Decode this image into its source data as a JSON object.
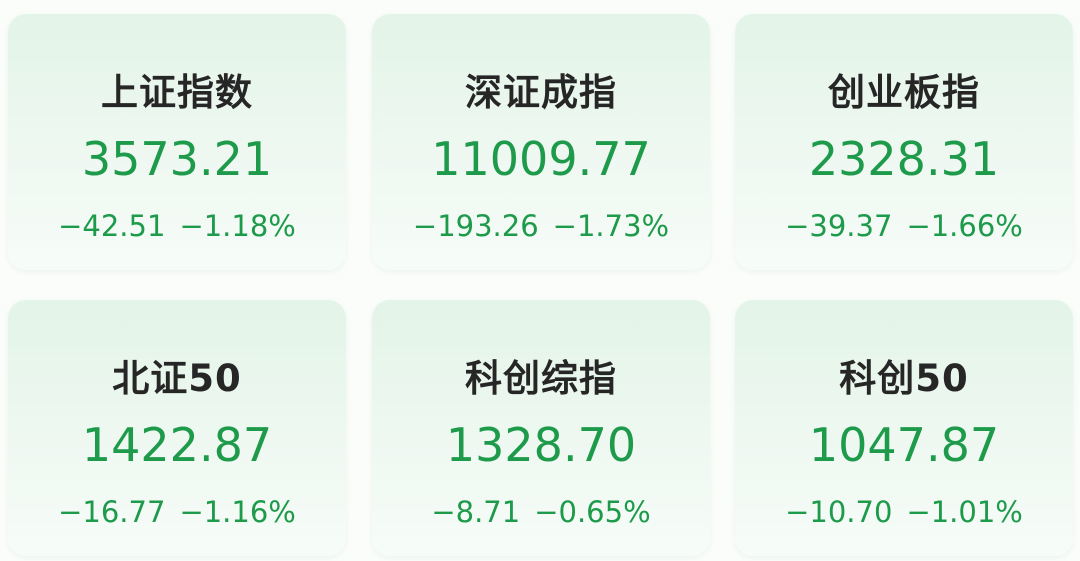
{
  "colors": {
    "down": "#1e9a4b",
    "title": "#262626"
  },
  "indices": [
    {
      "name": "上证指数",
      "value": "3573.21",
      "change": "−42.51",
      "pct": "−1.18%"
    },
    {
      "name": "深证成指",
      "value": "11009.77",
      "change": "−193.26",
      "pct": "−1.73%"
    },
    {
      "name": "创业板指",
      "value": "2328.31",
      "change": "−39.37",
      "pct": "−1.66%"
    },
    {
      "name": "北证50",
      "value": "1422.87",
      "change": "−16.77",
      "pct": "−1.16%"
    },
    {
      "name": "科创综指",
      "value": "1328.70",
      "change": "−8.71",
      "pct": "−0.65%"
    },
    {
      "name": "科创50",
      "value": "1047.87",
      "change": "−10.70",
      "pct": "−1.01%"
    }
  ]
}
